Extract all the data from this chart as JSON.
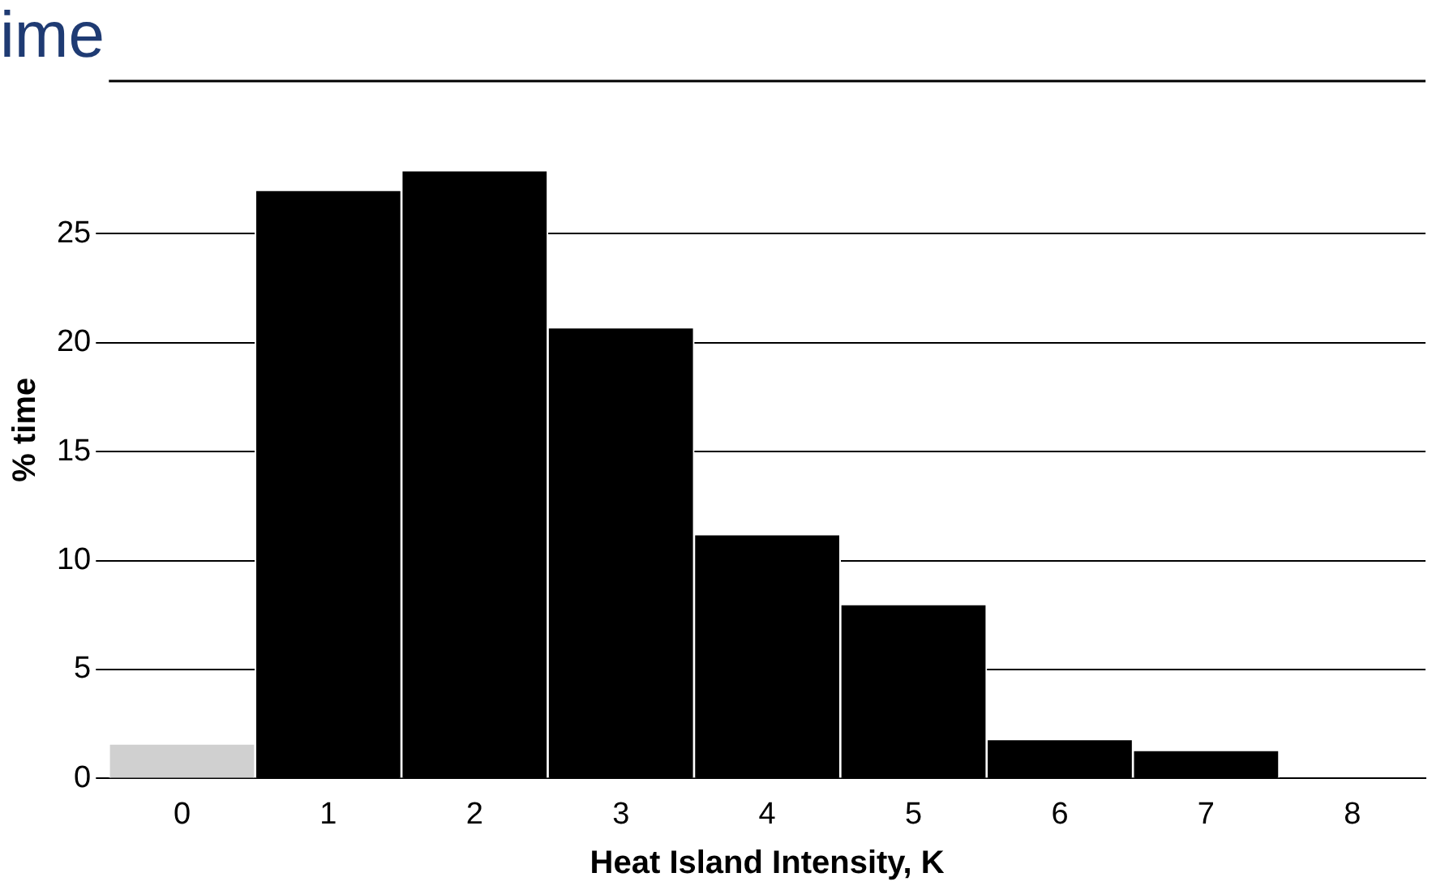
{
  "chart_data": {
    "type": "bar",
    "title": "ime",
    "xlabel": "Heat Island Intensity, K",
    "ylabel": "% time",
    "categories": [
      "0",
      "1",
      "2",
      "3",
      "4",
      "5",
      "6",
      "7",
      "8"
    ],
    "values": [
      1.6,
      27.0,
      27.9,
      20.7,
      11.2,
      8.0,
      1.8,
      1.3,
      0
    ],
    "colors": [
      "#d0d0d0",
      "#000000",
      "#000000",
      "#000000",
      "#000000",
      "#000000",
      "#000000",
      "#000000",
      "#000000"
    ],
    "ylim": [
      0,
      32
    ],
    "yticks": [
      0,
      5,
      10,
      15,
      20,
      25
    ],
    "grid": "y",
    "legend": false
  }
}
